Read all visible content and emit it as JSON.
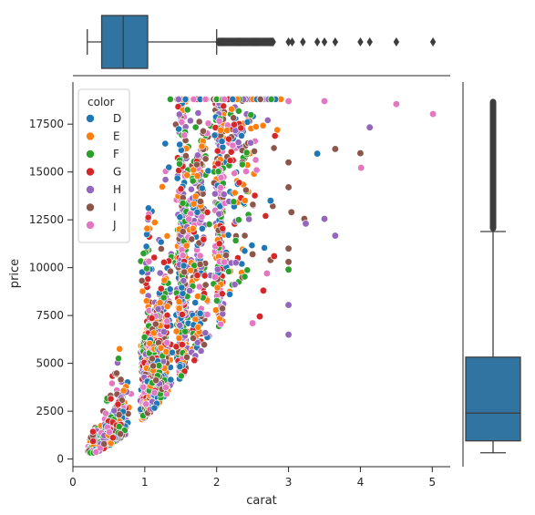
{
  "chart_data": {
    "type": "scatter",
    "subtype": "jointplot",
    "xlabel": "carat",
    "ylabel": "price",
    "xlim": [
      0,
      5.25
    ],
    "ylim": [
      -400,
      19700
    ],
    "xticks": [
      0,
      1,
      2,
      3,
      4,
      5
    ],
    "yticks": [
      0,
      2500,
      5000,
      7500,
      10000,
      12500,
      15000,
      17500
    ],
    "grid": false,
    "legend": {
      "title": "color",
      "placement": "top-left",
      "entries": [
        "D",
        "E",
        "F",
        "G",
        "H",
        "I",
        "J"
      ]
    },
    "colors": {
      "D": "#1f77b4",
      "E": "#ff7f0e",
      "F": "#2ca02c",
      "G": "#d62728",
      "H": "#9467bd",
      "I": "#8c564b",
      "J": "#e377c2",
      "box": "#3274a1",
      "box_edge": "#3d3d3d"
    },
    "marginal_box_x": {
      "min": 0.2,
      "q1": 0.4,
      "median": 0.7,
      "q3": 1.04,
      "whisker_high": 2.0,
      "outliers": [
        2.05,
        2.1,
        2.15,
        2.2,
        2.25,
        2.3,
        2.35,
        2.4,
        2.45,
        2.5,
        2.55,
        2.6,
        2.65,
        2.7,
        2.75,
        2.8,
        3.0,
        3.05,
        3.2,
        3.4,
        3.5,
        3.65,
        4.0,
        4.13,
        4.5,
        5.01
      ]
    },
    "marginal_box_y": {
      "min": 326,
      "q1": 950,
      "median": 2401,
      "q3": 5324,
      "whisker_high": 11890,
      "outlier_range": [
        11900,
        18823
      ]
    },
    "highlight_points": [
      {
        "x": 3.0,
        "y": 18700,
        "color": "J"
      },
      {
        "x": 3.5,
        "y": 18700,
        "color": "J"
      },
      {
        "x": 4.5,
        "y": 18550,
        "color": "J"
      },
      {
        "x": 5.01,
        "y": 18030,
        "color": "J"
      },
      {
        "x": 4.13,
        "y": 17330,
        "color": "H"
      },
      {
        "x": 3.65,
        "y": 16200,
        "color": "I"
      },
      {
        "x": 3.4,
        "y": 15960,
        "color": "D"
      },
      {
        "x": 4.0,
        "y": 15980,
        "color": "I"
      },
      {
        "x": 4.01,
        "y": 15220,
        "color": "J"
      },
      {
        "x": 3.0,
        "y": 15500,
        "color": "I"
      },
      {
        "x": 3.0,
        "y": 14200,
        "color": "I"
      },
      {
        "x": 2.75,
        "y": 13500,
        "color": "D"
      },
      {
        "x": 3.04,
        "y": 12900,
        "color": "I"
      },
      {
        "x": 3.22,
        "y": 12550,
        "color": "I"
      },
      {
        "x": 3.5,
        "y": 12550,
        "color": "H"
      },
      {
        "x": 3.24,
        "y": 12300,
        "color": "H"
      },
      {
        "x": 3.65,
        "y": 11670,
        "color": "H"
      },
      {
        "x": 3.0,
        "y": 11000,
        "color": "I"
      },
      {
        "x": 3.0,
        "y": 10300,
        "color": "I"
      },
      {
        "x": 3.0,
        "y": 9900,
        "color": "F"
      },
      {
        "x": 3.0,
        "y": 8050,
        "color": "H"
      },
      {
        "x": 3.0,
        "y": 6500,
        "color": "H"
      },
      {
        "x": 2.5,
        "y": 7100,
        "color": "J"
      },
      {
        "x": 2.6,
        "y": 7450,
        "color": "G"
      },
      {
        "x": 2.65,
        "y": 8800,
        "color": "G"
      },
      {
        "x": 2.7,
        "y": 9700,
        "color": "J"
      },
      {
        "x": 2.75,
        "y": 10400,
        "color": "I"
      },
      {
        "x": 2.8,
        "y": 10600,
        "color": "G"
      },
      {
        "x": 2.5,
        "y": 10700,
        "color": "I"
      }
    ]
  }
}
